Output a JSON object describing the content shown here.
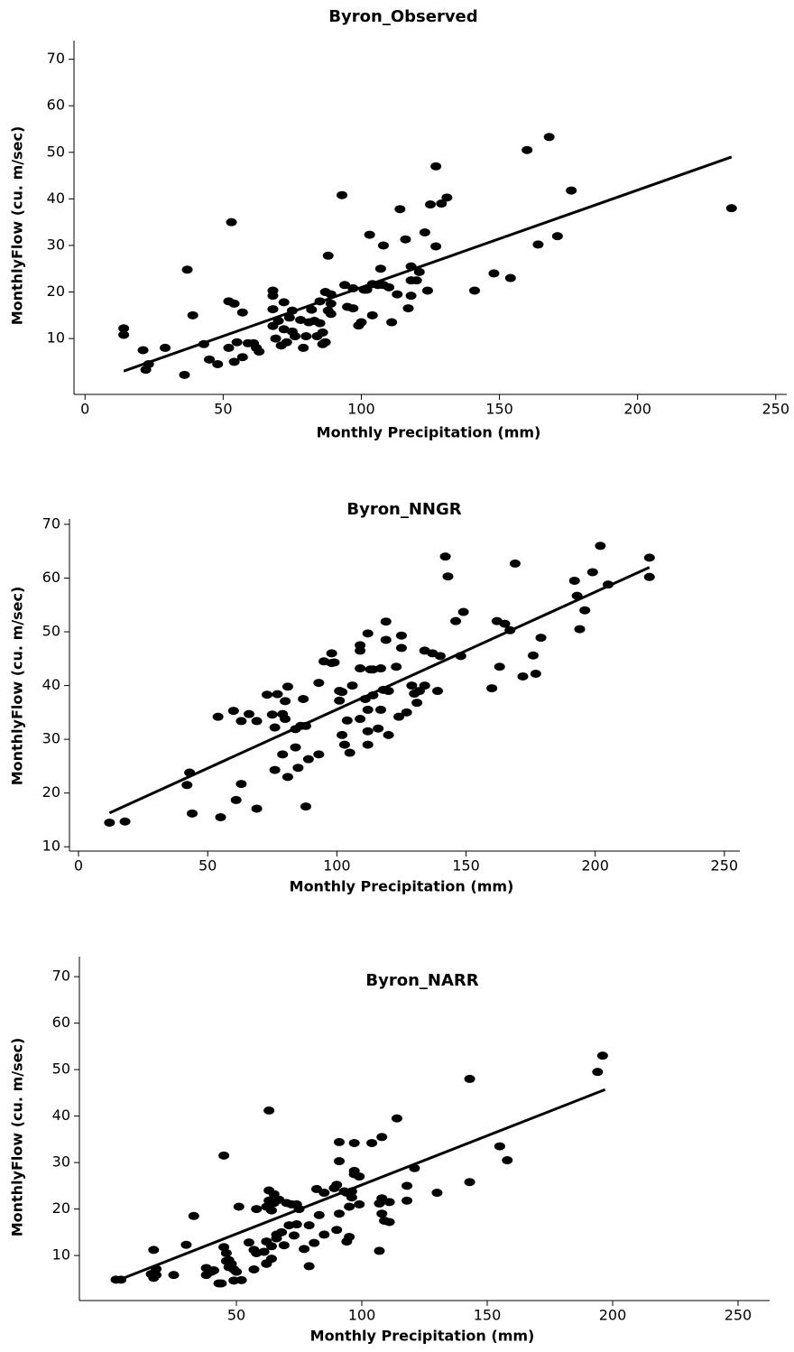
{
  "chart_data": [
    {
      "type": "scatter",
      "title": "Byron_Observed",
      "x_label": "Monthly Precipitation (mm)",
      "y_label": "MonthlyFlow (cu. m/sec)",
      "xlim": [
        -4,
        254
      ],
      "ylim": [
        -2,
        74
      ],
      "xticks": [
        0,
        50,
        100,
        150,
        200,
        250
      ],
      "yticks": [
        10,
        20,
        30,
        40,
        50,
        60,
        70
      ],
      "color": "#000000",
      "x": [
        14,
        14,
        21,
        22,
        23,
        29,
        36,
        37,
        39,
        43,
        45,
        48,
        52,
        52,
        53,
        54,
        54,
        55,
        57,
        57,
        59,
        61,
        62,
        63,
        68,
        68,
        68,
        68,
        69,
        70,
        71,
        72,
        72,
        73,
        74,
        75,
        75,
        76,
        78,
        79,
        80,
        81,
        82,
        83,
        84,
        85,
        85,
        86,
        86,
        87,
        87,
        88,
        88,
        89,
        89,
        89,
        93,
        94,
        95,
        97,
        97,
        99,
        100,
        101,
        102,
        103,
        104,
        104,
        106,
        107,
        108,
        108,
        110,
        111,
        113,
        114,
        116,
        117,
        118,
        118,
        118,
        120,
        121,
        123,
        124,
        125,
        127,
        127,
        129,
        131,
        141,
        148,
        154,
        160,
        164,
        168,
        171,
        176,
        234
      ],
      "y": [
        12.2,
        10.8,
        7.5,
        3.3,
        4.5,
        8,
        2.2,
        24.8,
        15,
        8.8,
        5.5,
        4.5,
        18,
        8,
        35,
        5,
        17.5,
        9.2,
        6,
        15.6,
        9,
        9,
        8,
        7.2,
        20.3,
        19.2,
        16.3,
        12.7,
        10,
        13.8,
        8.5,
        17.8,
        12,
        9.2,
        14.5,
        11.5,
        16,
        10.5,
        14,
        8,
        10.5,
        13.5,
        16.2,
        13.8,
        10.5,
        18,
        13.3,
        11.3,
        8.8,
        20,
        9.2,
        27.8,
        16,
        19.5,
        17.5,
        15.3,
        40.8,
        21.5,
        16.8,
        20.8,
        16.5,
        12.8,
        13.5,
        20.5,
        20.5,
        32.3,
        21.7,
        15,
        21.5,
        25,
        30,
        21.5,
        21,
        13.5,
        19.5,
        37.8,
        31.3,
        16.5,
        25.5,
        22.5,
        19.2,
        22.5,
        24.3,
        32.8,
        20.3,
        38.8,
        47,
        29.8,
        39,
        40.3,
        20.3,
        24,
        23,
        50.5,
        30.2,
        53.3,
        32,
        41.8,
        38
      ],
      "fit_line": {
        "x": [
          14,
          234
        ],
        "y": [
          3,
          49
        ]
      }
    },
    {
      "type": "scatter",
      "title": "Byron_NNGR",
      "x_label": "Monthly Precipitation (mm)",
      "y_label": "MonthlyFlow (cu. m/sec)",
      "xlim": [
        -3.5,
        256
      ],
      "ylim": [
        9.2,
        71
      ],
      "xticks": [
        0,
        50,
        100,
        150,
        200,
        250
      ],
      "yticks": [
        10,
        20,
        30,
        40,
        50,
        60,
        70
      ],
      "color": "#000000",
      "x": [
        12,
        18,
        42,
        43,
        44,
        54,
        55,
        60,
        61,
        63,
        63,
        66,
        69,
        69,
        73,
        75,
        76,
        76,
        77,
        79,
        79,
        80,
        80,
        81,
        81,
        84,
        84,
        85,
        86,
        87,
        88,
        88,
        89,
        93,
        93,
        95,
        98,
        98,
        99,
        101,
        101,
        102,
        102,
        103,
        104,
        105,
        106,
        109,
        109,
        109,
        109,
        111,
        112,
        112,
        112,
        112,
        113,
        114,
        114,
        116,
        117,
        117,
        118,
        119,
        119,
        120,
        120,
        123,
        124,
        125,
        125,
        127,
        129,
        130,
        131,
        132,
        134,
        134,
        137,
        139,
        140,
        142,
        143,
        146,
        148,
        149,
        160,
        162,
        163,
        165,
        167,
        169,
        172,
        176,
        177,
        179,
        192,
        193,
        194,
        196,
        199,
        202,
        205,
        221,
        221
      ],
      "y": [
        14.5,
        14.7,
        21.5,
        23.8,
        16.2,
        34.2,
        15.5,
        35.3,
        18.7,
        21.7,
        33.4,
        34.7,
        33.4,
        17.1,
        38.3,
        34.6,
        24.3,
        32.2,
        38.4,
        34.7,
        27.2,
        37.1,
        33.8,
        23,
        39.8,
        28.5,
        31.9,
        24.7,
        32.5,
        37.5,
        17.5,
        32.5,
        26.3,
        40.5,
        27.2,
        44.5,
        44.2,
        46,
        44.3,
        39,
        37.2,
        30.8,
        38.8,
        29,
        33.5,
        27.5,
        40,
        43.2,
        47.5,
        46.5,
        33.8,
        37.5,
        35.5,
        49.7,
        31.5,
        29,
        43,
        38.2,
        43,
        32,
        43.2,
        35.5,
        39.2,
        51.9,
        48.5,
        30.8,
        39,
        43.5,
        34.2,
        47,
        49.3,
        35,
        40,
        38.5,
        36.8,
        39,
        46.5,
        40,
        46,
        39,
        45.5,
        64,
        60.3,
        52,
        45.5,
        53.7,
        39.5,
        52,
        43.5,
        51.5,
        50.3,
        62.7,
        41.7,
        45.6,
        42.2,
        48.9,
        59.5,
        56.7,
        50.5,
        54,
        61.1,
        66,
        58.8,
        63.8,
        60.2
      ],
      "fit_line": {
        "x": [
          12,
          221
        ],
        "y": [
          16.3,
          62
        ]
      }
    },
    {
      "type": "scatter",
      "title": "Byron_NARR",
      "x_label": "Monthly Precipitation (mm)",
      "y_label": "MonthlyFlow (cu. m/sec)",
      "xlim": [
        -12.6,
        262.6
      ],
      "ylim": [
        0.3,
        74.3
      ],
      "xticks": [
        50,
        100,
        150,
        200,
        250
      ],
      "yticks": [
        10,
        20,
        30,
        40,
        50,
        60,
        70
      ],
      "color": "#000000",
      "x": [
        2,
        4,
        16,
        17,
        17,
        18,
        18,
        25,
        30,
        33,
        38,
        38,
        40,
        41,
        43,
        44,
        45,
        45,
        46,
        46,
        47,
        47,
        48,
        49,
        49,
        50,
        51,
        52,
        55,
        57,
        57,
        58,
        58,
        61,
        62,
        62,
        62,
        62,
        63,
        63,
        63,
        64,
        64,
        64,
        65,
        65,
        66,
        66,
        67,
        68,
        69,
        70,
        71,
        72,
        73,
        74,
        74,
        75,
        77,
        79,
        79,
        81,
        82,
        83,
        85,
        85,
        89,
        90,
        90,
        91,
        91,
        91,
        93,
        94,
        94,
        95,
        95,
        96,
        96,
        97,
        97,
        97,
        99,
        99,
        104,
        107,
        107,
        108,
        108,
        108,
        109,
        111,
        111,
        114,
        118,
        118,
        121,
        130,
        143,
        143,
        155,
        158,
        194,
        196
      ],
      "y": [
        4.8,
        4.8,
        6,
        5.2,
        11.2,
        7.1,
        5.8,
        5.8,
        12.3,
        18.5,
        7.3,
        5.8,
        6.5,
        6.8,
        4,
        4,
        11.8,
        31.5,
        10.5,
        8.8,
        7.5,
        9,
        8.2,
        4.6,
        7,
        6.5,
        20.5,
        4.7,
        12.8,
        11.2,
        7,
        10.5,
        20,
        10.8,
        8.2,
        20.5,
        13,
        8.3,
        41.2,
        21.8,
        24,
        12,
        19.7,
        9.3,
        23.2,
        21.3,
        13.7,
        14.5,
        22,
        15,
        12.2,
        21.3,
        16.5,
        21,
        14.3,
        16.7,
        21,
        20,
        11.4,
        7.7,
        16.5,
        12.7,
        24.3,
        18.7,
        23.5,
        14.5,
        24.5,
        25.2,
        15.5,
        30.3,
        34.4,
        19,
        23.8,
        13,
        23.5,
        20.5,
        14,
        22.5,
        23.8,
        34.2,
        28.2,
        27.5,
        27,
        21,
        34.2,
        21.2,
        11,
        19,
        22.3,
        35.5,
        17.5,
        17.2,
        21.5,
        39.5,
        21.8,
        25,
        28.8,
        23.5,
        48,
        25.8,
        33.5,
        30.5,
        49.5,
        53
      ],
      "fit_line": {
        "x": [
          2,
          197
        ],
        "y": [
          4.5,
          45.7
        ]
      }
    }
  ]
}
